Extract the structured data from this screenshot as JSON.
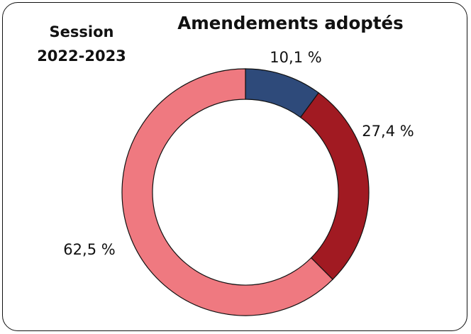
{
  "header": {
    "session_line1": "Session",
    "session_line2": "2022-2023"
  },
  "chart_data": {
    "type": "pie",
    "donut": true,
    "title": "Amendements adoptés",
    "categories": [
      "",
      "",
      ""
    ],
    "values": [
      10.1,
      27.4,
      62.5
    ],
    "labels": [
      "10,1 %",
      "27,4 %",
      "62,5 %"
    ],
    "colors": [
      "#2e4a7a",
      "#a11a22",
      "#ef7980"
    ],
    "start_angle_deg": 0,
    "direction": "clockwise",
    "legend": "none"
  }
}
